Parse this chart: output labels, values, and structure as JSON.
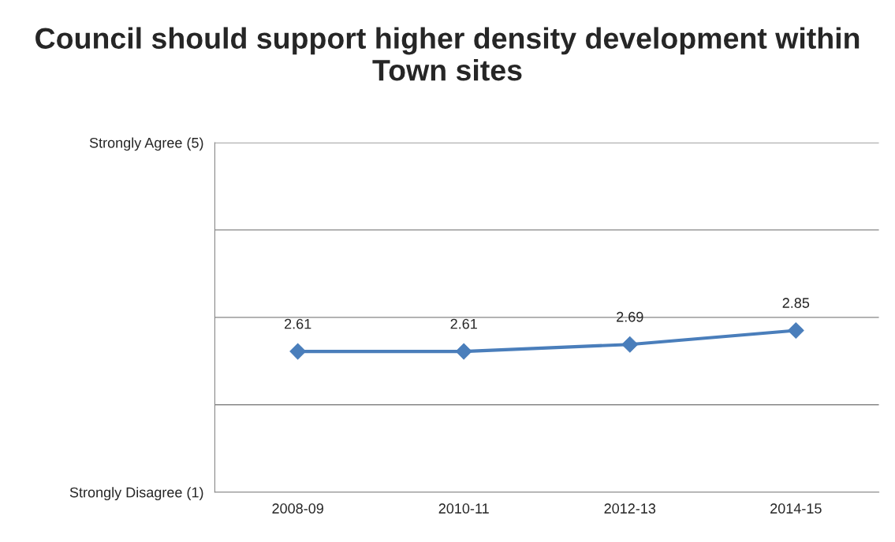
{
  "chart_data": {
    "type": "line",
    "title": "Council should support higher density development within Town sites",
    "categories": [
      "2008-09",
      "2010-11",
      "2012-13",
      "2014-15"
    ],
    "series": [
      {
        "color": "#4a7ebb",
        "values": [
          2.61,
          2.61,
          2.69,
          2.85
        ]
      }
    ],
    "ylim": [
      1,
      5
    ],
    "yticks": [
      {
        "value": 1,
        "label": "Strongly Disagree (1)"
      },
      {
        "value": 2,
        "label": null
      },
      {
        "value": 3,
        "label": null
      },
      {
        "value": 4,
        "label": null
      },
      {
        "value": 5,
        "label": "Strongly Agree (5)"
      }
    ],
    "grid": "y",
    "marker": "diamond",
    "data_labels": true,
    "legend": false
  }
}
